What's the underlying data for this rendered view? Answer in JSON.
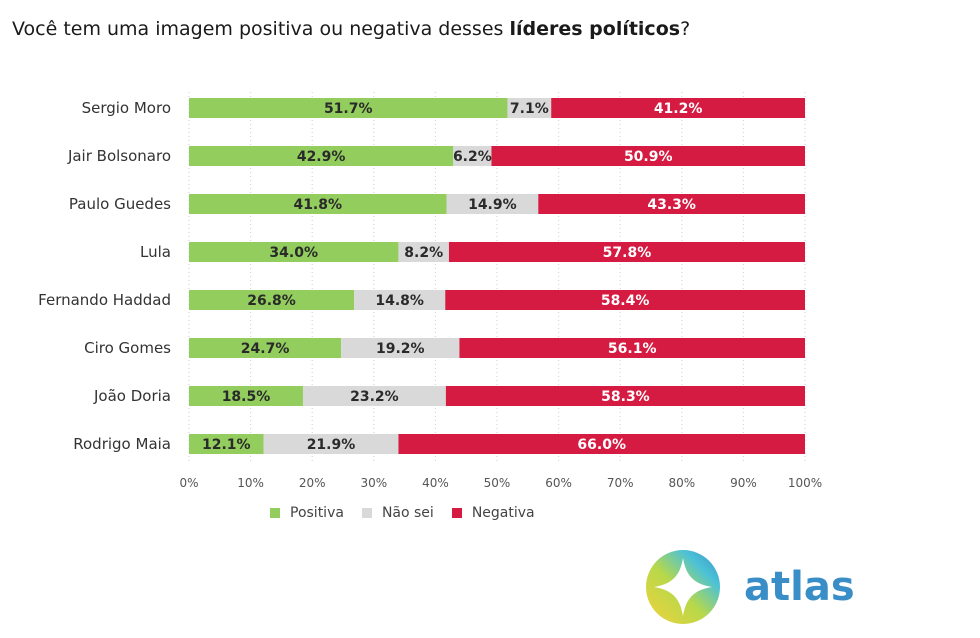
{
  "title": {
    "prefix": "Você tem uma imagem positiva ou negativa desses ",
    "bold": "líderes políticos",
    "suffix": "?"
  },
  "colors": {
    "positiva": "#92cd5e",
    "nao_sei": "#d9d9d9",
    "negativa": "#d51b41"
  },
  "legend": [
    {
      "label": "Positiva",
      "color": "#92cd5e"
    },
    {
      "label": "Não sei",
      "color": "#d9d9d9"
    },
    {
      "label": "Negativa",
      "color": "#d51b41"
    }
  ],
  "logo": {
    "text": "atlas",
    "icon": "atlas-logo-icon"
  },
  "chart_data": {
    "type": "bar",
    "orientation": "horizontal",
    "stacked": "100%",
    "title": "Você tem uma imagem positiva ou negativa desses líderes políticos?",
    "categories": [
      "Sergio Moro",
      "Jair Bolsonaro",
      "Paulo Guedes",
      "Lula",
      "Fernando Haddad",
      "Ciro Gomes",
      "João Doria",
      "Rodrigo Maia"
    ],
    "series": [
      {
        "name": "Positiva",
        "values": [
          51.7,
          42.9,
          41.8,
          34.0,
          26.8,
          24.7,
          18.5,
          12.1
        ],
        "labels": [
          "51.7%",
          "42.9%",
          "41.8%",
          "34.0%",
          "26.8%",
          "24.7%",
          "18.5%",
          "12.1%"
        ]
      },
      {
        "name": "Não sei",
        "values": [
          7.1,
          6.2,
          14.9,
          8.2,
          14.8,
          19.2,
          23.2,
          21.9
        ],
        "labels": [
          "7.1%",
          "6.2%",
          "14.9%",
          "8.2%",
          "14.8%",
          "19.2%",
          "23.2%",
          "21.9%"
        ]
      },
      {
        "name": "Negativa",
        "values": [
          41.2,
          50.9,
          43.3,
          57.8,
          58.4,
          56.1,
          58.3,
          66.0
        ],
        "labels": [
          "41.2%",
          "50.9%",
          "43.3%",
          "57.8%",
          "58.4%",
          "56.1%",
          "58.3%",
          "66.0%"
        ]
      }
    ],
    "xlim": [
      0,
      100
    ],
    "xticks": [
      "0%",
      "10%",
      "20%",
      "30%",
      "40%",
      "50%",
      "60%",
      "70%",
      "80%",
      "90%",
      "100%"
    ],
    "legend_position": "bottom"
  }
}
